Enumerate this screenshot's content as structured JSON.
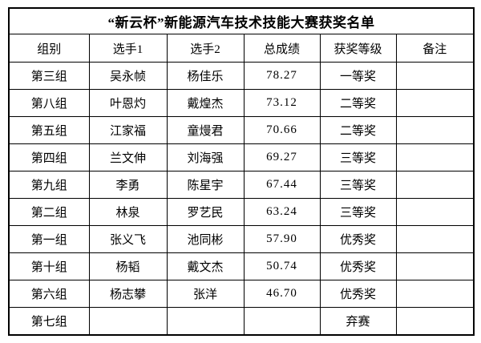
{
  "title": "“新云杯”新能源汽车技术技能大赛获奖名单",
  "table": {
    "headers": [
      "组别",
      "选手1",
      "选手2",
      "总成绩",
      "获奖等级",
      "备注"
    ],
    "rows": [
      {
        "group": "第三组",
        "player1": "吴永帧",
        "player2": "杨佳乐",
        "score": "78.27",
        "award": "一等奖",
        "note": ""
      },
      {
        "group": "第八组",
        "player1": "叶恩灼",
        "player2": "戴煌杰",
        "score": "73.12",
        "award": "二等奖",
        "note": ""
      },
      {
        "group": "第五组",
        "player1": "江家福",
        "player2": "童熳君",
        "score": "70.66",
        "award": "二等奖",
        "note": ""
      },
      {
        "group": "第四组",
        "player1": "兰文伸",
        "player2": "刘海强",
        "score": "69.27",
        "award": "三等奖",
        "note": ""
      },
      {
        "group": "第九组",
        "player1": "李勇",
        "player2": "陈星宇",
        "score": "67.44",
        "award": "三等奖",
        "note": ""
      },
      {
        "group": "第二组",
        "player1": "林泉",
        "player2": "罗艺民",
        "score": "63.24",
        "award": "三等奖",
        "note": ""
      },
      {
        "group": "第一组",
        "player1": "张义飞",
        "player2": "池同彬",
        "score": "57.90",
        "award": "优秀奖",
        "note": ""
      },
      {
        "group": "第十组",
        "player1": "杨韬",
        "player2": "戴文杰",
        "score": "50.74",
        "award": "优秀奖",
        "note": ""
      },
      {
        "group": "第六组",
        "player1": "杨志攀",
        "player2": "张洋",
        "score": "46.70",
        "award": "优秀奖",
        "note": ""
      },
      {
        "group": "第七组",
        "player1": "",
        "player2": "",
        "score": "",
        "award": "弃赛",
        "note": ""
      }
    ]
  },
  "colors": {
    "border": "#000000",
    "text": "#000000",
    "background": "#ffffff"
  }
}
